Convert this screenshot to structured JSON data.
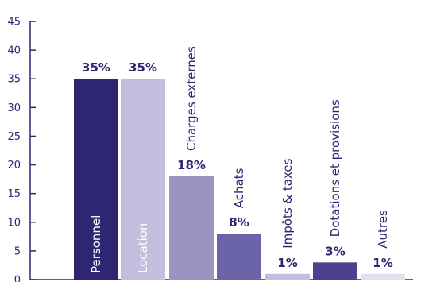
{
  "chart_data": {
    "type": "bar",
    "categories": [
      "Personnel",
      "Location",
      "Charges externes",
      "Achats",
      "Impôts & taxes",
      "Dotations et provisions",
      "Autres"
    ],
    "values": [
      35,
      35,
      18,
      8,
      1,
      3,
      1
    ],
    "data_labels": [
      "35%",
      "35%",
      "18%",
      "8%",
      "1%",
      "3%",
      "1%"
    ],
    "bar_colors": [
      "#2e2670",
      "#c2bedd",
      "#9a94c2",
      "#6b64a8",
      "#c2bedd",
      "#4a4190",
      "#e2e0ef"
    ],
    "yticks": [
      "0",
      "5",
      "10",
      "15",
      "20",
      "25",
      "30",
      "35",
      "40",
      "45"
    ],
    "ylim": [
      0,
      45
    ],
    "title": "",
    "xlabel": "",
    "ylabel": "",
    "grid": false,
    "axis_color": "#2e2670"
  }
}
